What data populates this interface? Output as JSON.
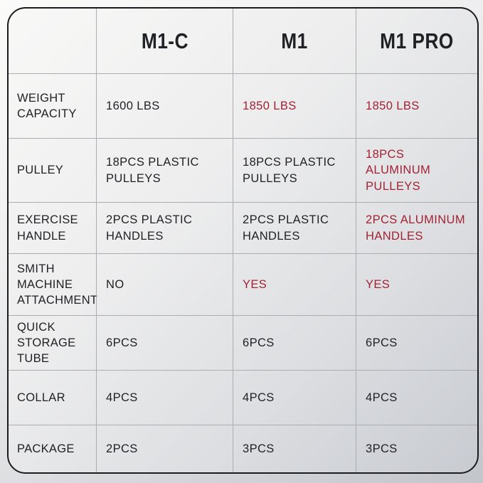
{
  "theme": {
    "text_color": "#1f2023",
    "highlight_color": "#a32134",
    "grid_line_color": "#aaadb2",
    "outer_border_color": "#1b1c1e"
  },
  "columns": [
    {
      "label": "M1-C"
    },
    {
      "label": "M1"
    },
    {
      "label": "M1 PRO"
    }
  ],
  "rows": [
    {
      "label": "WEIGHT\nCAPACITY",
      "values": [
        {
          "text": "1600 LBS",
          "highlight": false
        },
        {
          "text": "1850 LBS",
          "highlight": true
        },
        {
          "text": "1850 LBS",
          "highlight": true
        }
      ]
    },
    {
      "label": "PULLEY",
      "values": [
        {
          "text": "18PCS PLASTIC\nPULLEYS",
          "highlight": false
        },
        {
          "text": "18PCS PLASTIC\nPULLEYS",
          "highlight": false
        },
        {
          "text": "18PCS\nALUMINUM PULLEYS",
          "highlight": true
        }
      ]
    },
    {
      "label": "EXERCISE\nHANDLE",
      "values": [
        {
          "text": "2PCS PLASTIC\nHANDLES",
          "highlight": false
        },
        {
          "text": "2PCS PLASTIC\nHANDLES",
          "highlight": false
        },
        {
          "text": "2PCS ALUMINUM\nHANDLES",
          "highlight": true
        }
      ]
    },
    {
      "label": "SMITH MACHINE\nATTACHMENT",
      "values": [
        {
          "text": "NO",
          "highlight": false
        },
        {
          "text": "YES",
          "highlight": true
        },
        {
          "text": "YES",
          "highlight": true
        }
      ]
    },
    {
      "label": "QUICK\nSTORAGE TUBE",
      "values": [
        {
          "text": "6PCS",
          "highlight": false
        },
        {
          "text": "6PCS",
          "highlight": false
        },
        {
          "text": "6PCS",
          "highlight": false
        }
      ]
    },
    {
      "label": "COLLAR",
      "values": [
        {
          "text": "4PCS",
          "highlight": false
        },
        {
          "text": "4PCS",
          "highlight": false
        },
        {
          "text": "4PCS",
          "highlight": false
        }
      ]
    },
    {
      "label": "PACKAGE",
      "values": [
        {
          "text": "2PCS",
          "highlight": false
        },
        {
          "text": "3PCS",
          "highlight": false
        },
        {
          "text": "3PCS",
          "highlight": false
        }
      ]
    }
  ]
}
